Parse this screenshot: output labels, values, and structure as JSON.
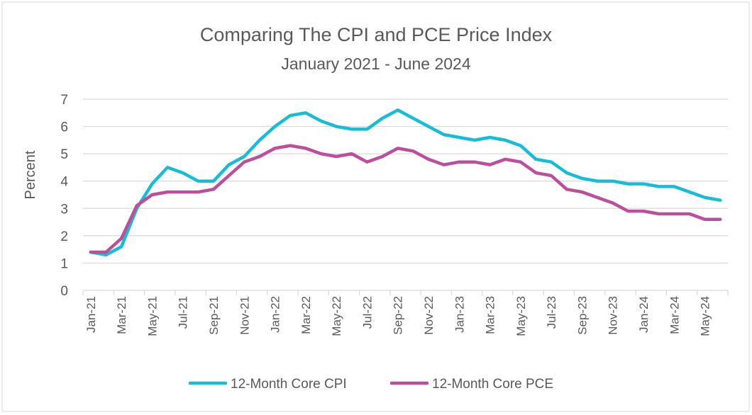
{
  "chart_data": {
    "type": "line",
    "title": "Comparing The CPI and PCE Price Index",
    "subtitle": "January 2021 - June 2024",
    "xlabel": "",
    "ylabel": "Percent",
    "ylim": [
      0,
      7
    ],
    "yticks": [
      "0",
      "1",
      "2",
      "3",
      "4",
      "5",
      "6",
      "7"
    ],
    "grid": true,
    "legend": "bottom",
    "categories": [
      "Jan-21",
      "Feb-21",
      "Mar-21",
      "Apr-21",
      "May-21",
      "Jun-21",
      "Jul-21",
      "Aug-21",
      "Sep-21",
      "Oct-21",
      "Nov-21",
      "Dec-21",
      "Jan-22",
      "Feb-22",
      "Mar-22",
      "Apr-22",
      "May-22",
      "Jun-22",
      "Jul-22",
      "Aug-22",
      "Sep-22",
      "Oct-22",
      "Nov-22",
      "Dec-22",
      "Jan-23",
      "Feb-23",
      "Mar-23",
      "Apr-23",
      "May-23",
      "Jun-23",
      "Jul-23",
      "Aug-23",
      "Sep-23",
      "Oct-23",
      "Nov-23",
      "Dec-23",
      "Jan-24",
      "Feb-24",
      "Mar-24",
      "Apr-24",
      "May-24",
      "Jun-24"
    ],
    "xtick_labels": [
      "Jan-21",
      "Mar-21",
      "May-21",
      "Jul-21",
      "Sep-21",
      "Nov-21",
      "Jan-22",
      "Mar-22",
      "May-22",
      "Jul-22",
      "Sep-22",
      "Nov-22",
      "Jan-23",
      "Mar-23",
      "May-23",
      "Jul-23",
      "Sep-23",
      "Nov-23",
      "Jan-24",
      "Mar-24",
      "May-24"
    ],
    "series": [
      {
        "name": "12-Month Core CPI",
        "color": "#17BCD6",
        "values": [
          1.4,
          1.3,
          1.6,
          3.0,
          3.9,
          4.5,
          4.3,
          4.0,
          4.0,
          4.6,
          4.9,
          5.5,
          6.0,
          6.4,
          6.5,
          6.2,
          6.0,
          5.9,
          5.9,
          6.3,
          6.6,
          6.3,
          6.0,
          5.7,
          5.6,
          5.5,
          5.6,
          5.5,
          5.3,
          4.8,
          4.7,
          4.3,
          4.1,
          4.0,
          4.0,
          3.9,
          3.9,
          3.8,
          3.8,
          3.6,
          3.4,
          3.3
        ]
      },
      {
        "name": "12-Month Core PCE",
        "color": "#BB4F9C",
        "values": [
          1.4,
          1.4,
          1.9,
          3.1,
          3.5,
          3.6,
          3.6,
          3.6,
          3.7,
          4.2,
          4.7,
          4.9,
          5.2,
          5.3,
          5.2,
          5.0,
          4.9,
          5.0,
          4.7,
          4.9,
          5.2,
          5.1,
          4.8,
          4.6,
          4.7,
          4.7,
          4.6,
          4.8,
          4.7,
          4.3,
          4.2,
          3.7,
          3.6,
          3.4,
          3.2,
          2.9,
          2.9,
          2.8,
          2.8,
          2.8,
          2.6,
          2.6
        ]
      }
    ]
  }
}
